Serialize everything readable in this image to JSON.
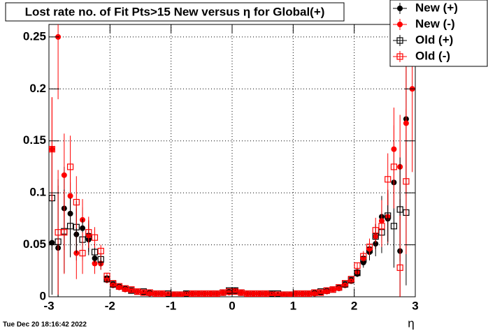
{
  "chart_data": {
    "type": "scatter",
    "title": "Lost rate no. of Fit Pts>15 New versus η for Global(+)",
    "x_label": "η",
    "timestamp": "Tue Dec 20 18:16:42 2022",
    "xlim": [
      -3,
      3
    ],
    "ylim": [
      0,
      0.262
    ],
    "xticks": [
      -3,
      -2,
      -1,
      0,
      1,
      2,
      3
    ],
    "yticks": [
      0,
      0.05,
      0.1,
      0.15,
      0.2,
      0.25
    ],
    "grid": true,
    "legend": "top-right",
    "x": [
      -2.95,
      -2.85,
      -2.75,
      -2.65,
      -2.55,
      -2.45,
      -2.35,
      -2.25,
      -2.15,
      -2.05,
      -1.95,
      -1.85,
      -1.75,
      -1.65,
      -1.55,
      -1.45,
      -1.35,
      -1.25,
      -1.15,
      -1.05,
      -0.95,
      -0.85,
      -0.75,
      -0.65,
      -0.55,
      -0.45,
      -0.35,
      -0.25,
      -0.15,
      -0.05,
      0.05,
      0.15,
      0.25,
      0.35,
      0.45,
      0.55,
      0.65,
      0.75,
      0.85,
      0.95,
      1.05,
      1.15,
      1.25,
      1.35,
      1.45,
      1.55,
      1.65,
      1.75,
      1.85,
      1.95,
      2.05,
      2.15,
      2.25,
      2.35,
      2.45,
      2.55,
      2.65,
      2.75,
      2.85,
      2.95
    ],
    "series": [
      {
        "name": "New (+)",
        "color": "#000000",
        "marker": "circle",
        "values": [
          0.052,
          0.047,
          0.085,
          0.08,
          0.06,
          0.066,
          0.055,
          0.037,
          0.032,
          0.018,
          0.012,
          0.01,
          0.008,
          0.006,
          0.005,
          0.004,
          0.004,
          0.003,
          0.003,
          0.002,
          0.002,
          0.002,
          0.003,
          0.003,
          0.003,
          0.003,
          0.003,
          0.003,
          0.004,
          0.005,
          0.006,
          0.004,
          0.003,
          0.003,
          0.003,
          0.003,
          0.003,
          0.002,
          0.002,
          0.002,
          0.003,
          0.003,
          0.003,
          0.004,
          0.004,
          0.006,
          0.007,
          0.009,
          0.012,
          0.016,
          0.022,
          0.033,
          0.043,
          0.051,
          0.077,
          0.075,
          0.11,
          0.044,
          0.171,
          null
        ],
        "errors": [
          0.05,
          0.06,
          0.04,
          0.03,
          0.025,
          0.02,
          0.015,
          0.01,
          0.006,
          0.003,
          0.001,
          0.001,
          0.001,
          0.001,
          0.001,
          0.001,
          0.001,
          0.001,
          0.001,
          0.001,
          0.001,
          0.001,
          0.001,
          0.001,
          0.001,
          0.001,
          0.001,
          0.001,
          0.001,
          0.001,
          0.001,
          0.001,
          0.001,
          0.001,
          0.001,
          0.001,
          0.001,
          0.001,
          0.001,
          0.001,
          0.001,
          0.001,
          0.001,
          0.001,
          0.001,
          0.001,
          0.001,
          0.001,
          0.001,
          0.001,
          0.003,
          0.005,
          0.008,
          0.012,
          0.02,
          0.025,
          0.04,
          0.05,
          0.07,
          null
        ]
      },
      {
        "name": "New (-)",
        "color": "#ff0000",
        "marker": "circle",
        "values": [
          0.142,
          0.25,
          0.117,
          0.097,
          0.042,
          0.074,
          0.059,
          0.032,
          0.032,
          0.016,
          0.011,
          0.009,
          0.007,
          0.006,
          0.005,
          0.004,
          0.003,
          0.003,
          0.003,
          0.002,
          0.002,
          0.002,
          0.002,
          0.003,
          0.003,
          0.003,
          0.003,
          0.003,
          0.004,
          0.004,
          0.005,
          0.004,
          0.003,
          0.003,
          0.003,
          0.003,
          0.002,
          0.002,
          0.002,
          0.002,
          0.003,
          0.003,
          0.003,
          0.003,
          0.004,
          0.005,
          0.007,
          0.008,
          0.011,
          0.015,
          0.024,
          0.037,
          0.046,
          0.058,
          0.073,
          0.077,
          0.142,
          0.125,
          0.167,
          0.2
        ],
        "errors": [
          0.05,
          0.06,
          0.04,
          0.03,
          0.025,
          0.02,
          0.015,
          0.01,
          0.006,
          0.003,
          0.001,
          0.001,
          0.001,
          0.001,
          0.001,
          0.001,
          0.001,
          0.001,
          0.001,
          0.001,
          0.001,
          0.001,
          0.001,
          0.001,
          0.001,
          0.001,
          0.001,
          0.001,
          0.001,
          0.001,
          0.001,
          0.001,
          0.001,
          0.001,
          0.001,
          0.001,
          0.001,
          0.001,
          0.001,
          0.001,
          0.001,
          0.001,
          0.001,
          0.001,
          0.001,
          0.001,
          0.001,
          0.001,
          0.001,
          0.001,
          0.003,
          0.005,
          0.008,
          0.012,
          0.02,
          0.025,
          0.04,
          0.05,
          0.07,
          0.08
        ]
      },
      {
        "name": "Old (+)",
        "color": "#000000",
        "marker": "square-open",
        "values": [
          0.095,
          0.053,
          0.063,
          0.068,
          0.067,
          0.055,
          0.058,
          0.043,
          0.036,
          0.017,
          0.012,
          0.01,
          0.008,
          0.006,
          0.005,
          0.005,
          0.004,
          0.003,
          0.003,
          0.003,
          0.002,
          0.002,
          0.003,
          0.003,
          0.003,
          0.003,
          0.003,
          0.003,
          0.004,
          0.006,
          0.006,
          0.004,
          0.003,
          0.003,
          0.003,
          0.003,
          0.003,
          0.003,
          0.002,
          0.002,
          0.003,
          0.003,
          0.003,
          0.004,
          0.005,
          0.006,
          0.007,
          0.009,
          0.012,
          0.016,
          0.023,
          0.036,
          0.045,
          0.058,
          0.062,
          0.078,
          0.068,
          0.084,
          0.081,
          null
        ],
        "errors": [
          0.05,
          0.06,
          0.04,
          0.03,
          0.025,
          0.02,
          0.015,
          0.01,
          0.006,
          0.003,
          0.001,
          0.001,
          0.001,
          0.001,
          0.001,
          0.001,
          0.001,
          0.001,
          0.001,
          0.001,
          0.001,
          0.001,
          0.001,
          0.001,
          0.001,
          0.001,
          0.001,
          0.001,
          0.001,
          0.001,
          0.001,
          0.001,
          0.001,
          0.001,
          0.001,
          0.001,
          0.001,
          0.001,
          0.001,
          0.001,
          0.001,
          0.001,
          0.001,
          0.001,
          0.001,
          0.001,
          0.001,
          0.001,
          0.001,
          0.001,
          0.003,
          0.005,
          0.008,
          0.012,
          0.02,
          0.025,
          0.04,
          0.05,
          0.07,
          null
        ]
      },
      {
        "name": "Old (-)",
        "color": "#ff0000",
        "marker": "square-open",
        "values": [
          0.142,
          0.062,
          0.062,
          0.125,
          0.091,
          0.042,
          0.062,
          0.057,
          0.044,
          0.02,
          0.013,
          0.01,
          0.008,
          0.007,
          0.005,
          0.004,
          0.004,
          0.003,
          0.003,
          0.002,
          0.002,
          0.002,
          0.002,
          0.003,
          0.003,
          0.003,
          0.003,
          0.003,
          0.004,
          0.005,
          0.005,
          0.004,
          0.003,
          0.003,
          0.003,
          0.003,
          0.002,
          0.002,
          0.002,
          0.002,
          0.003,
          0.003,
          0.003,
          0.004,
          0.004,
          0.006,
          0.007,
          0.009,
          0.013,
          0.017,
          0.03,
          0.039,
          0.048,
          0.064,
          0.068,
          0.113,
          0.125,
          0.028,
          0.111,
          null
        ],
        "errors": [
          0.05,
          0.06,
          0.04,
          0.03,
          0.025,
          0.02,
          0.015,
          0.01,
          0.006,
          0.003,
          0.001,
          0.001,
          0.001,
          0.001,
          0.001,
          0.001,
          0.001,
          0.001,
          0.001,
          0.001,
          0.001,
          0.001,
          0.001,
          0.001,
          0.001,
          0.001,
          0.001,
          0.001,
          0.001,
          0.001,
          0.001,
          0.001,
          0.001,
          0.001,
          0.001,
          0.001,
          0.001,
          0.001,
          0.001,
          0.001,
          0.001,
          0.001,
          0.001,
          0.001,
          0.001,
          0.001,
          0.001,
          0.001,
          0.001,
          0.001,
          0.003,
          0.005,
          0.008,
          0.012,
          0.02,
          0.025,
          0.04,
          0.05,
          0.07,
          null
        ]
      }
    ]
  }
}
